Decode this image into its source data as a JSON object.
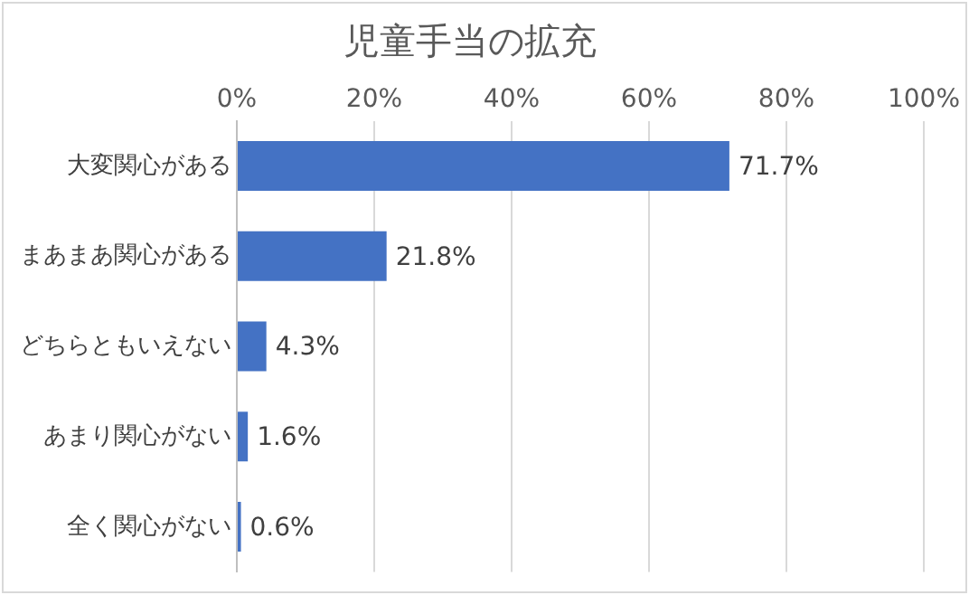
{
  "chart_data": {
    "type": "bar",
    "orientation": "horizontal",
    "title": "児童手当の拡充",
    "categories": [
      "大変関心がある",
      "まあまあ関心がある",
      "どちらともいえない",
      "あまり関心がない",
      "全く関心がない"
    ],
    "values": [
      71.7,
      21.8,
      4.3,
      1.6,
      0.6
    ],
    "value_labels": [
      "71.7%",
      "21.8%",
      "4.3%",
      "1.6%",
      "0.6%"
    ],
    "color": "#4472c4",
    "xlim": [
      0,
      100
    ],
    "xticks": [
      {
        "value": 0,
        "label": "0%"
      },
      {
        "value": 20,
        "label": "20%"
      },
      {
        "value": 40,
        "label": "40%"
      },
      {
        "value": 60,
        "label": "60%"
      },
      {
        "value": 80,
        "label": "80%"
      },
      {
        "value": 100,
        "label": "100%"
      }
    ],
    "grid": "x",
    "legend": false
  }
}
